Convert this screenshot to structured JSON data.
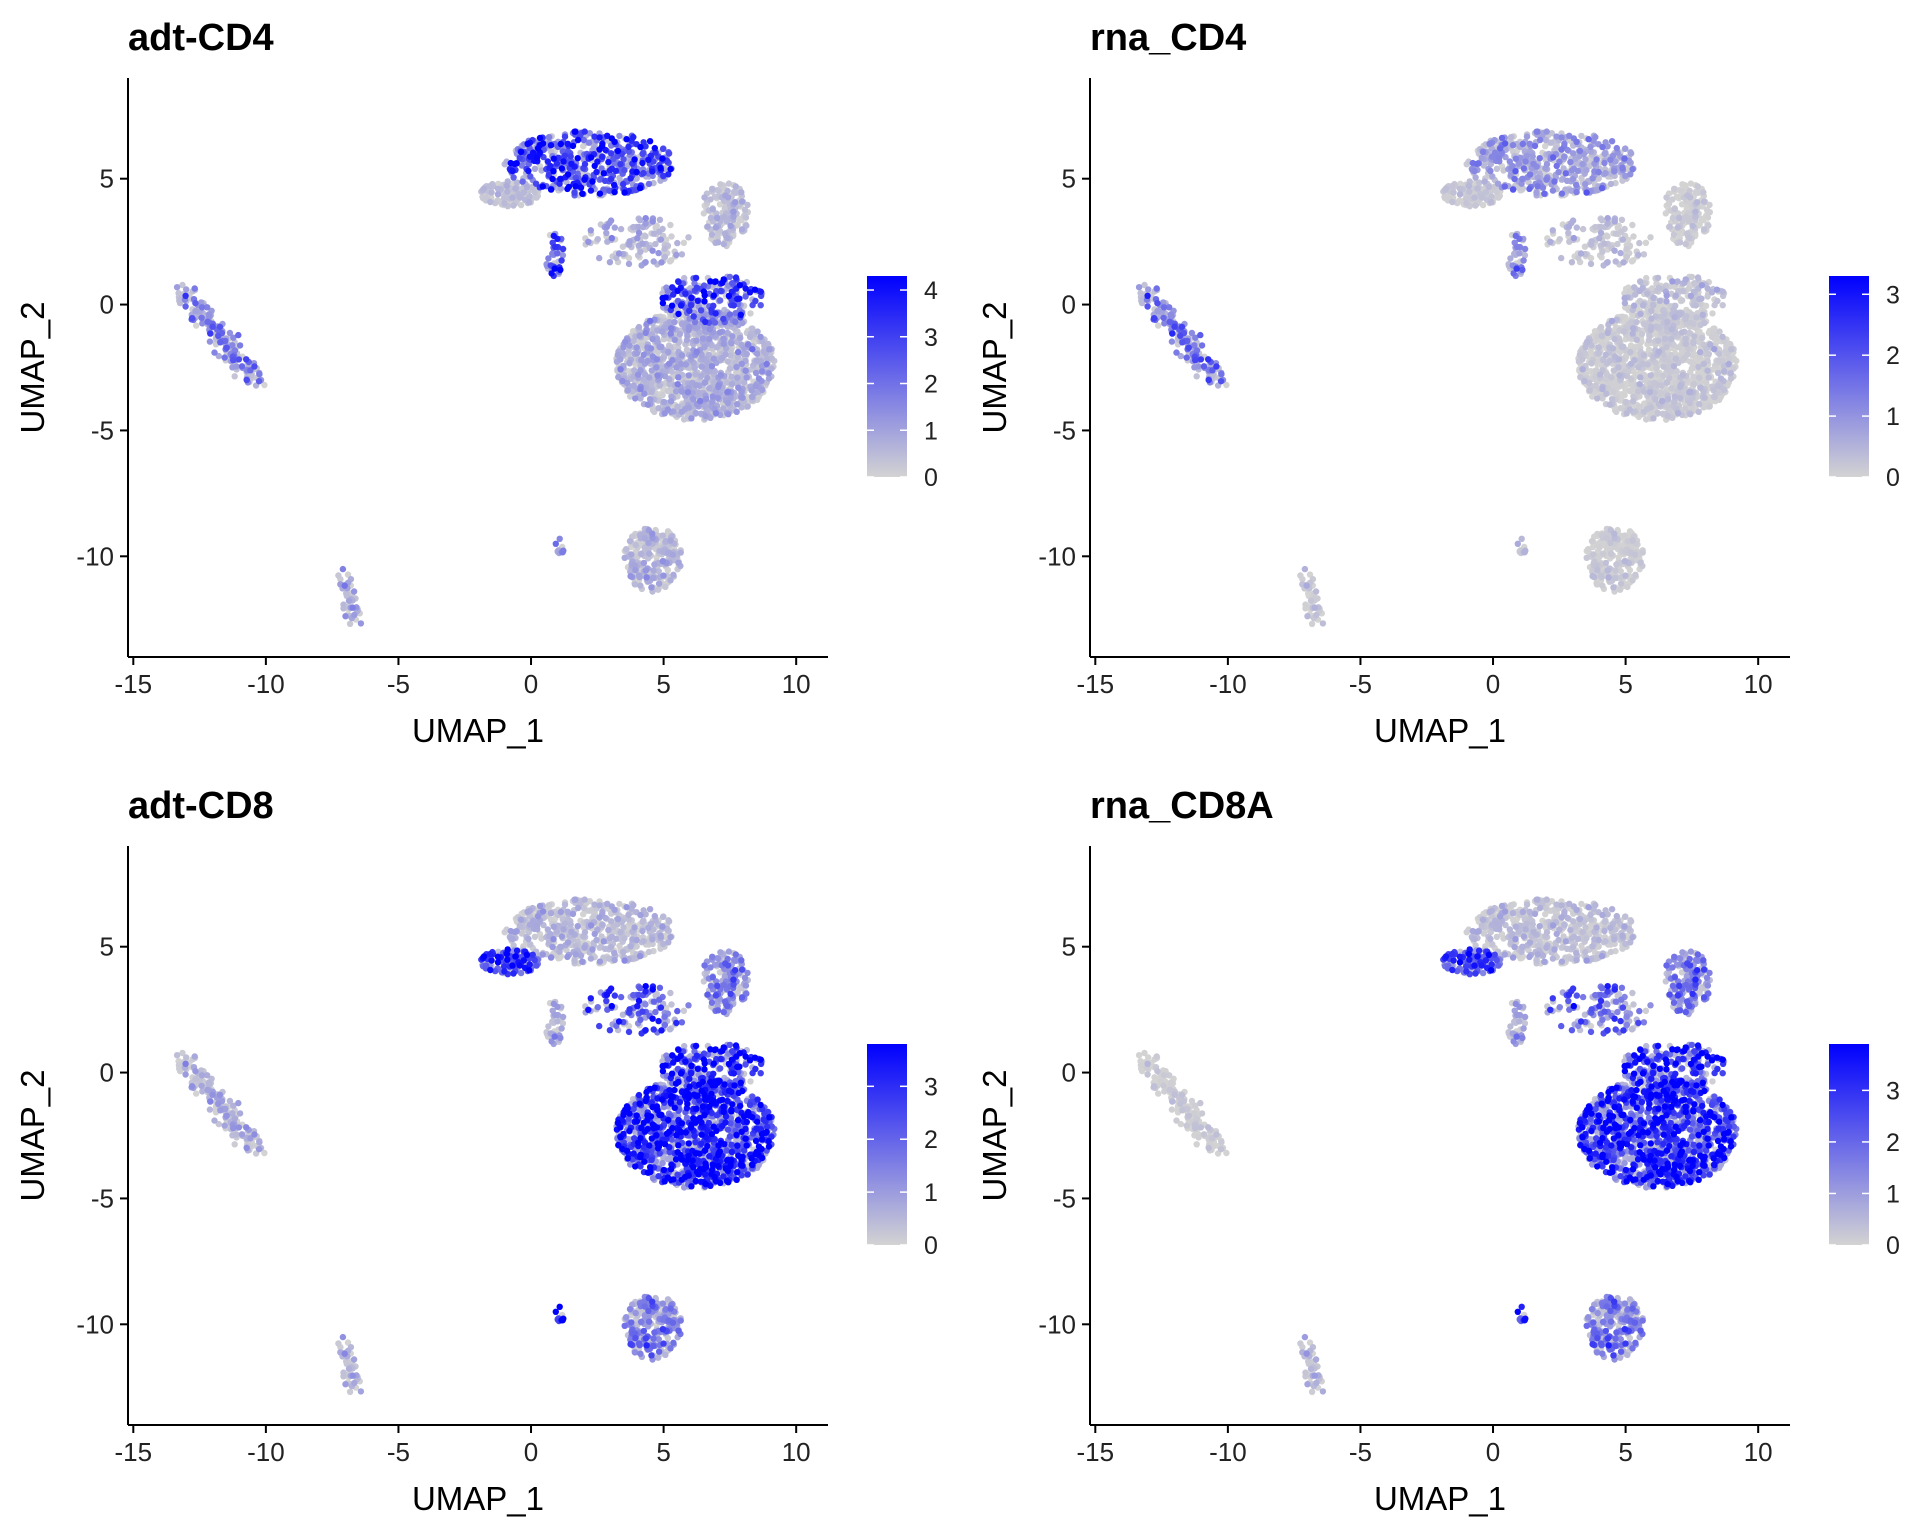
{
  "chart_data": [
    {
      "type": "scatter",
      "title": "adt-CD4",
      "xlabel": "UMAP_1",
      "ylabel": "UMAP_2",
      "xlim": [
        -15.2,
        11.2
      ],
      "ylim": [
        -14.0,
        9.0
      ],
      "xticks": [
        -15,
        -10,
        -5,
        0,
        5,
        10
      ],
      "xtick_labels": [
        "-15",
        "-10",
        "-5",
        "0",
        "5",
        "10"
      ],
      "yticks": [
        -10,
        -5,
        0,
        5
      ],
      "ytick_labels": [
        "-10",
        "-5",
        "0",
        "5"
      ],
      "legend": {
        "position": "right",
        "min": 0,
        "max": 4.3,
        "ticks": [
          0,
          1,
          2,
          3,
          4
        ],
        "tick_labels": [
          "0",
          "1",
          "2",
          "3",
          "4"
        ],
        "low_color": "#d3d3d3",
        "high_color": "#0000ff"
      },
      "clusters": [
        {
          "name": "top-left",
          "value_mean": 2.6
        },
        {
          "name": "top-left-tail",
          "value_mean": 0.3
        },
        {
          "name": "top-right",
          "value_mean": 0.4
        },
        {
          "name": "bridge",
          "value_mean": 0.6
        },
        {
          "name": "main-upper",
          "value_mean": 2.5
        },
        {
          "name": "main-lower",
          "value_mean": 0.6
        },
        {
          "name": "small-island",
          "value_mean": 2.4
        },
        {
          "name": "left-streak",
          "value_mean": 1.3
        },
        {
          "name": "bottom-left",
          "value_mean": 0.9
        },
        {
          "name": "bottom-right",
          "value_mean": 0.5
        },
        {
          "name": "tiny-pair",
          "value_mean": 1.0
        }
      ]
    },
    {
      "type": "scatter",
      "title": "rna_CD4",
      "xlabel": "UMAP_1",
      "ylabel": "UMAP_2",
      "xlim": [
        -15.2,
        11.2
      ],
      "ylim": [
        -14.0,
        9.0
      ],
      "xticks": [
        -15,
        -10,
        -5,
        0,
        5,
        10
      ],
      "xtick_labels": [
        "-15",
        "-10",
        "-5",
        "0",
        "5",
        "10"
      ],
      "yticks": [
        -10,
        -5,
        0,
        5
      ],
      "ytick_labels": [
        "-10",
        "-5",
        "0",
        "5"
      ],
      "legend": {
        "position": "right",
        "min": 0,
        "max": 3.3,
        "ticks": [
          0,
          1,
          2,
          3
        ],
        "tick_labels": [
          "0",
          "1",
          "2",
          "3"
        ],
        "low_color": "#d3d3d3",
        "high_color": "#0000ff"
      },
      "clusters": [
        {
          "name": "top-left",
          "value_mean": 0.7
        },
        {
          "name": "top-left-tail",
          "value_mean": 0.1
        },
        {
          "name": "top-right",
          "value_mean": 0.05
        },
        {
          "name": "bridge",
          "value_mean": 0.2
        },
        {
          "name": "main-upper",
          "value_mean": 0.2
        },
        {
          "name": "main-lower",
          "value_mean": 0.08
        },
        {
          "name": "small-island",
          "value_mean": 0.9
        },
        {
          "name": "left-streak",
          "value_mean": 1.1
        },
        {
          "name": "bottom-left",
          "value_mean": 0.2
        },
        {
          "name": "bottom-right",
          "value_mean": 0.05
        },
        {
          "name": "tiny-pair",
          "value_mean": 0.2
        }
      ]
    },
    {
      "type": "scatter",
      "title": "adt-CD8",
      "xlabel": "UMAP_1",
      "ylabel": "UMAP_2",
      "xlim": [
        -15.2,
        11.2
      ],
      "ylim": [
        -14.0,
        9.0
      ],
      "xticks": [
        -15,
        -10,
        -5,
        0,
        5,
        10
      ],
      "xtick_labels": [
        "-15",
        "-10",
        "-5",
        "0",
        "5",
        "10"
      ],
      "yticks": [
        -10,
        -5,
        0,
        5
      ],
      "ytick_labels": [
        "-10",
        "-5",
        "0",
        "5"
      ],
      "legend": {
        "position": "right",
        "min": 0,
        "max": 3.8,
        "ticks": [
          0,
          1,
          2,
          3
        ],
        "tick_labels": [
          "0",
          "1",
          "2",
          "3"
        ],
        "low_color": "#d3d3d3",
        "high_color": "#0000ff"
      },
      "clusters": [
        {
          "name": "top-left",
          "value_mean": 0.4
        },
        {
          "name": "top-left-tail",
          "value_mean": 2.4
        },
        {
          "name": "top-right",
          "value_mean": 1.2
        },
        {
          "name": "bridge",
          "value_mean": 1.9
        },
        {
          "name": "main-upper",
          "value_mean": 2.6
        },
        {
          "name": "main-lower",
          "value_mean": 2.7
        },
        {
          "name": "small-island",
          "value_mean": 0.6
        },
        {
          "name": "left-streak",
          "value_mean": 0.5
        },
        {
          "name": "bottom-left",
          "value_mean": 0.6
        },
        {
          "name": "bottom-right",
          "value_mean": 1.2
        },
        {
          "name": "tiny-pair",
          "value_mean": 2.8
        }
      ]
    },
    {
      "type": "scatter",
      "title": "rna_CD8A",
      "xlabel": "UMAP_1",
      "ylabel": "UMAP_2",
      "xlim": [
        -15.2,
        11.2
      ],
      "ylim": [
        -14.0,
        9.0
      ],
      "xticks": [
        -15,
        -10,
        -5,
        0,
        5,
        10
      ],
      "xtick_labels": [
        "-15",
        "-10",
        "-5",
        "0",
        "5",
        "10"
      ],
      "yticks": [
        -10,
        -5,
        0,
        5
      ],
      "ytick_labels": [
        "-10",
        "-5",
        "0",
        "5"
      ],
      "legend": {
        "position": "right",
        "min": 0,
        "max": 3.9,
        "ticks": [
          0,
          1,
          2,
          3
        ],
        "tick_labels": [
          "0",
          "1",
          "2",
          "3"
        ],
        "low_color": "#d3d3d3",
        "high_color": "#0000ff"
      },
      "clusters": [
        {
          "name": "top-left",
          "value_mean": 0.3
        },
        {
          "name": "top-left-tail",
          "value_mean": 2.2
        },
        {
          "name": "top-right",
          "value_mean": 1.4
        },
        {
          "name": "bridge",
          "value_mean": 1.6
        },
        {
          "name": "main-upper",
          "value_mean": 2.6
        },
        {
          "name": "main-lower",
          "value_mean": 2.6
        },
        {
          "name": "small-island",
          "value_mean": 0.7
        },
        {
          "name": "left-streak",
          "value_mean": 0.05
        },
        {
          "name": "bottom-left",
          "value_mean": 0.5
        },
        {
          "name": "bottom-right",
          "value_mean": 1.3
        },
        {
          "name": "tiny-pair",
          "value_mean": 2.2
        }
      ]
    }
  ]
}
